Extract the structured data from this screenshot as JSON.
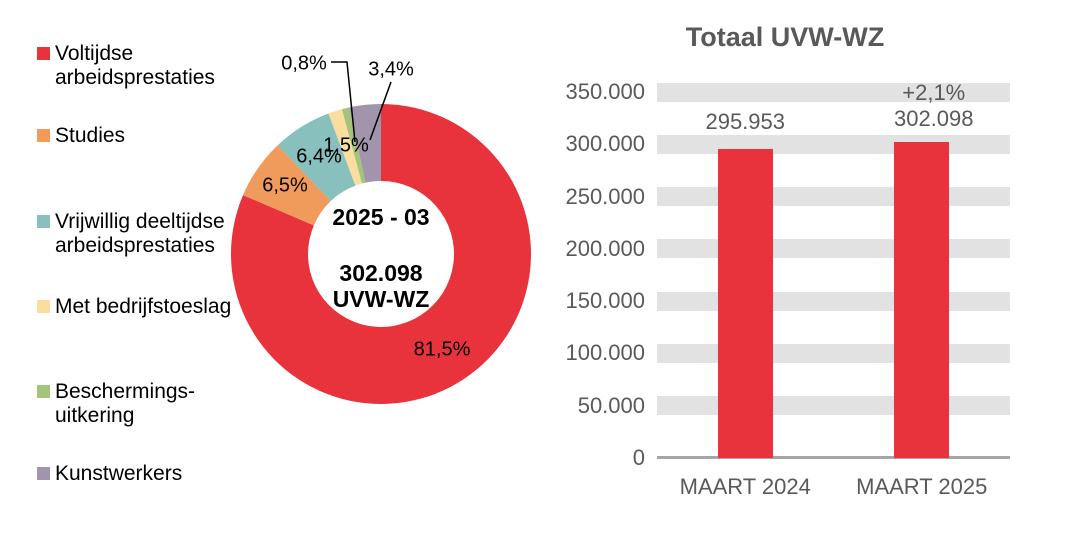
{
  "chart_data": [
    {
      "type": "pie",
      "subtype": "donut",
      "title": "",
      "center_text": [
        "2025 - 03",
        "302.098",
        "UVW-WZ"
      ],
      "labels": [
        "Voltijdse arbeidsprestaties",
        "Studies",
        "Vrijwillig deeltijdse arbeidsprestaties",
        "Met bedrijfstoeslag",
        "Beschermings-uitkering",
        "Kunstwerkers"
      ],
      "values_pct": [
        81.5,
        6.5,
        6.4,
        1.5,
        0.8,
        3.4
      ],
      "value_labels": [
        "81,5%",
        "6,5%",
        "6,4%",
        "1,5%",
        "0,8%",
        "3,4%"
      ],
      "colors": [
        "#E8333D",
        "#F09B5C",
        "#87C0BD",
        "#FADE9D",
        "#A4C47C",
        "#A294AC"
      ],
      "legend_position": "left",
      "start_angle_deg": 0,
      "direction": "clockwise"
    },
    {
      "type": "bar",
      "title": "Totaal UVW-WZ",
      "categories": [
        "MAART 2024",
        "MAART 2025"
      ],
      "values": [
        295953,
        302098
      ],
      "value_labels": [
        "295.953",
        "302.098"
      ],
      "bar_annotations": [
        "",
        "+2,1%"
      ],
      "bar_color": "#E8333D",
      "ylim": [
        0,
        350000
      ],
      "y_tick_step": 50000,
      "y_tick_labels": [
        "0",
        "50.000",
        "100.000",
        "150.000",
        "200.000",
        "250.000",
        "300.000",
        "350.000"
      ],
      "gridline_style": "thick-gray-bands"
    }
  ],
  "legend": {
    "items": [
      {
        "lines": [
          "Voltijdse",
          "arbeidsprestaties"
        ],
        "color": "#E8333D"
      },
      {
        "lines": [
          "Studies"
        ],
        "color": "#F09B5C"
      },
      {
        "lines": [
          "Vrijwillig deeltijdse",
          "arbeidsprestaties"
        ],
        "color": "#87C0BD"
      },
      {
        "lines": [
          "Met bedrijfstoeslag"
        ],
        "color": "#FADE9D"
      },
      {
        "lines": [
          "Beschermings-",
          "uitkering"
        ],
        "color": "#A4C47C"
      },
      {
        "lines": [
          "Kunstwerkers"
        ],
        "color": "#A294AC"
      }
    ]
  },
  "donut_center": {
    "line1": "2025 - 03",
    "line2": "302.098",
    "line3": "UVW-WZ"
  },
  "styles": {
    "accent_red": "#E8333D",
    "axis_text_color": "#595959",
    "gridline_color": "#E2E2E2",
    "axis_line_color": "#A6A6A6",
    "label_text_color": "#000000"
  }
}
